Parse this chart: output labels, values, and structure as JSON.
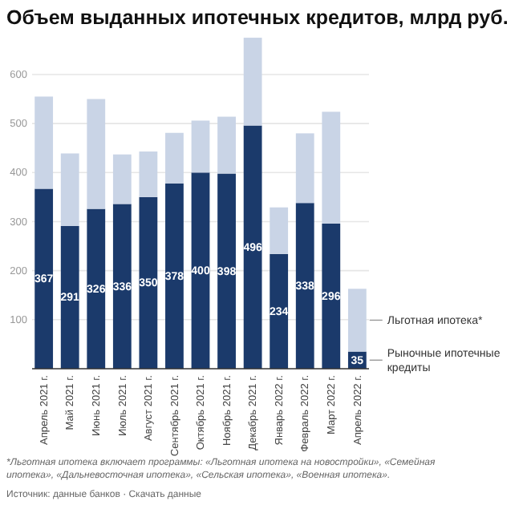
{
  "chart_data": {
    "type": "bar",
    "stacked": true,
    "title": "Объем выданных ипотечных кредитов, млрд руб.",
    "categories": [
      "Апрель 2021 г.",
      "Май 2021 г.",
      "Июнь 2021 г.",
      "Июль 2021 г.",
      "Август 2021 г.",
      "Сентябрь 2021 г.",
      "Октябрь 2021 г.",
      "Ноябрь 2021 г.",
      "Декабрь 2021 г.",
      "Январь 2022 г.",
      "Февраль 2022 г.",
      "Март 2022 г.",
      "Апрель 2022 г."
    ],
    "series": [
      {
        "name": "Рыночные ипотечные кредиты",
        "color": "#1b3a6b",
        "values": [
          367,
          291,
          326,
          336,
          350,
          378,
          400,
          398,
          496,
          234,
          338,
          296,
          35
        ],
        "value_labels": [
          "367",
          "291",
          "326",
          "336",
          "350",
          "378",
          "400",
          "398",
          "496",
          "234",
          "338",
          "296",
          "35"
        ]
      },
      {
        "name": "Льготная ипотека*",
        "color": "#c9d4e6",
        "values": [
          188,
          148,
          224,
          101,
          93,
          103,
          106,
          116,
          179,
          95,
          142,
          228,
          128
        ]
      }
    ],
    "ylim": [
      0,
      680
    ],
    "yticks": [
      100,
      200,
      300,
      400,
      500,
      600
    ],
    "grid": "y",
    "legend": "right",
    "annotations": [
      "*Льготная ипотека включает программы: «Льготная ипотека на новостройки», «Семейная ипотека», «Дальневосточная ипотека», «Сельская ипотека», «Военная ипотека».",
      "Источник: данные банков · Скачать данные"
    ]
  }
}
